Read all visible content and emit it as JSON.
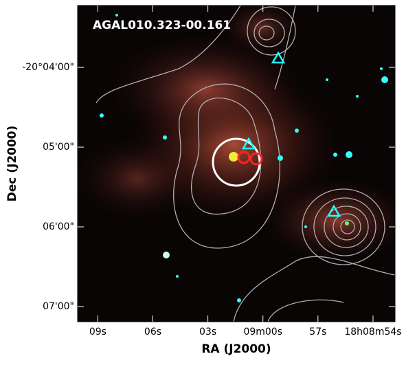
{
  "chart_data": {
    "type": "image",
    "title": "AGAL010.323-00.161",
    "x_label": "RA (J2000)",
    "y_label": "Dec (J2000)",
    "xlim": [
      70.1,
      52.8
    ],
    "xticks": [
      {
        "value": 69,
        "label": "09s"
      },
      {
        "value": 66,
        "label": "06s"
      },
      {
        "value": 63,
        "label": "03s"
      },
      {
        "value": 60,
        "label": "09m00s"
      },
      {
        "value": 57,
        "label": "57s"
      },
      {
        "value": 54,
        "label": "18h08m54s"
      }
    ],
    "ylim": [
      431.4,
      193.4
    ],
    "yticks": [
      {
        "value": 240,
        "label": "-20°04'00\""
      },
      {
        "value": 300,
        "label": "05'00\""
      },
      {
        "value": 360,
        "label": "06'00\""
      },
      {
        "value": 420,
        "label": "07'00\""
      }
    ]
  }
}
